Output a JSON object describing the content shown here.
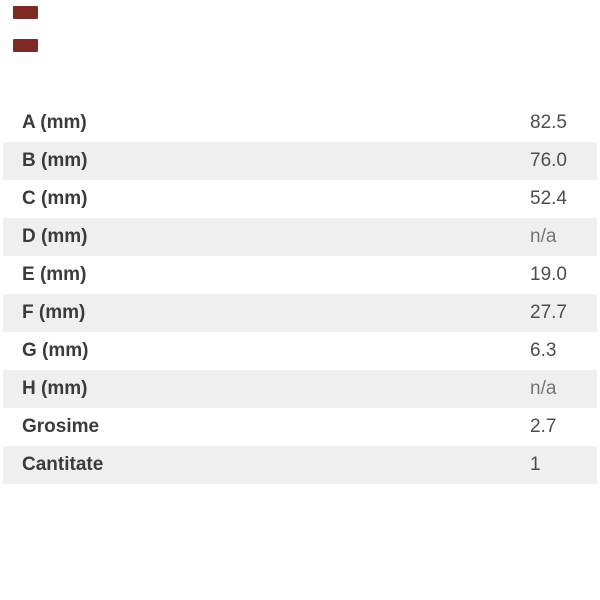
{
  "page": {
    "background_color": "#ffffff"
  },
  "decor": {
    "marks_color": "#7d2a24"
  },
  "spec_table": {
    "stripe_color": "#efefef",
    "label_color": "#3b3b3b",
    "value_color": "#4d4d4d",
    "na_color": "#757575",
    "rows": [
      {
        "label": "A (mm)",
        "value": "82.5",
        "muted": false
      },
      {
        "label": "B (mm)",
        "value": "76.0",
        "muted": false
      },
      {
        "label": "C (mm)",
        "value": "52.4",
        "muted": false
      },
      {
        "label": "D (mm)",
        "value": "n/a",
        "muted": true
      },
      {
        "label": "E (mm)",
        "value": "19.0",
        "muted": false
      },
      {
        "label": "F (mm)",
        "value": "27.7",
        "muted": false
      },
      {
        "label": "G (mm)",
        "value": "6.3",
        "muted": false
      },
      {
        "label": "H (mm)",
        "value": "n/a",
        "muted": true
      },
      {
        "label": "Grosime",
        "value": "2.7",
        "muted": false
      },
      {
        "label": "Cantitate",
        "value": "1",
        "muted": false
      }
    ]
  }
}
